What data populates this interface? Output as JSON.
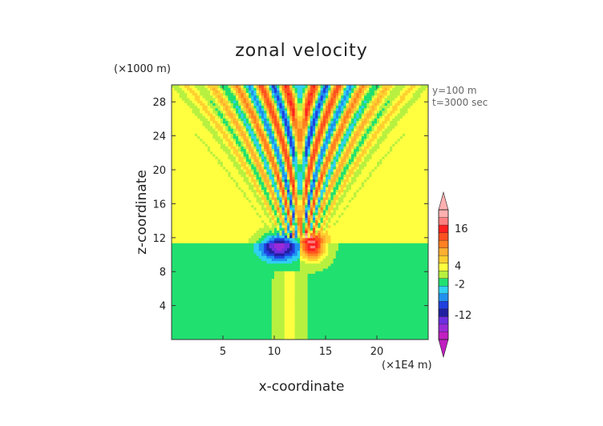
{
  "chart_data": {
    "type": "heatmap",
    "title": "zonal velocity",
    "xlabel": "x-coordinate",
    "ylabel": "z-coordinate",
    "x_unit_label": "(×1E4 m)",
    "y_unit_label": "(×1000 m)",
    "xlim": [
      0,
      25
    ],
    "ylim": [
      0,
      30
    ],
    "x_ticks": [
      5,
      10,
      15,
      20
    ],
    "y_ticks": [
      4,
      8,
      12,
      16,
      20,
      24,
      28
    ],
    "annotations": [
      "y=100 m",
      "t=3000 sec"
    ],
    "colorbar": {
      "tick_labels": [
        "16",
        "4",
        "-2",
        "-12"
      ],
      "tick_values": [
        16,
        4,
        -2,
        -12
      ],
      "range": [
        -20,
        22
      ],
      "colors": [
        "#c020c0",
        "#9a2ad8",
        "#6d2ee0",
        "#2020a0",
        "#2040e0",
        "#2090f0",
        "#30d0f0",
        "#20e070",
        "#b8f040",
        "#ffff40",
        "#ffd030",
        "#ffb030",
        "#ff8020",
        "#ff5020",
        "#ff2020",
        "#ff8080",
        "#ffb0b0"
      ]
    },
    "grid": false,
    "legend": "colorbar-right",
    "field": {
      "background_upper": 3,
      "background_lower": -0.5,
      "interface_z": 11.5,
      "center_x": 12.5,
      "lower_jet": [
        [
          11.5,
          4,
          8
        ],
        [
          14,
          -14,
          -6
        ]
      ],
      "jump_core": {
        "x": 12.5,
        "z": 11.0,
        "left": -16,
        "right": 18
      },
      "wave_fan": {
        "z_min": 12,
        "z_max": 30,
        "amplitude": 12
      }
    }
  }
}
